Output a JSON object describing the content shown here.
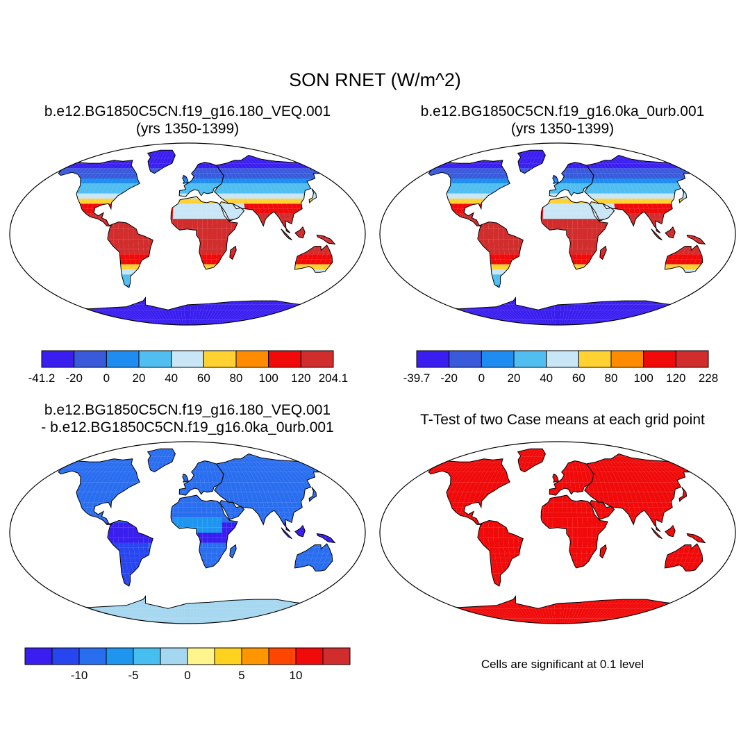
{
  "title": "SON RNET (W/m^2)",
  "panels": [
    {
      "title_line1": "b.e12.BG1850C5CN.f19_g16.180_VEQ.001",
      "title_line2": "(yrs 1350-1399)",
      "colorbar": {
        "colors": [
          "#3a1ef0",
          "#3a5adc",
          "#1e8cf0",
          "#50bef0",
          "#c8e6f5",
          "#ffd232",
          "#ff8c00",
          "#f00a0a",
          "#d22d2d"
        ],
        "labels": [
          "-41.2",
          "-20",
          "0",
          "20",
          "40",
          "60",
          "80",
          "100",
          "120",
          "204.1"
        ]
      }
    },
    {
      "title_line1": "b.e12.BG1850C5CN.f19_g16.0ka_0urb.001",
      "title_line2": "(yrs 1350-1399)",
      "colorbar": {
        "colors": [
          "#3a1ef0",
          "#3a5adc",
          "#1e8cf0",
          "#50bef0",
          "#c8e6f5",
          "#ffd232",
          "#ff8c00",
          "#f00a0a",
          "#d22d2d"
        ],
        "labels": [
          "-39.7",
          "-20",
          "0",
          "20",
          "40",
          "60",
          "80",
          "100",
          "120",
          "228"
        ]
      }
    },
    {
      "title_line1": "b.e12.BG1850C5CN.f19_g16.180_VEQ.001",
      "title_line2": "- b.e12.BG1850C5CN.f19_g16.0ka_0urb.001",
      "colorbar": {
        "colors": [
          "#3a1ef0",
          "#2846f0",
          "#2a6ef0",
          "#1e96f0",
          "#46bef0",
          "#a5d7f0",
          "#fff58c",
          "#ffd21e",
          "#ff9600",
          "#ff4600",
          "#f00a0a",
          "#d22d2d"
        ],
        "labels": [
          "-10",
          "-5",
          "0",
          "5",
          "10"
        ]
      }
    },
    {
      "title_line1": "T-Test of two Case means at each grid point",
      "note": "Cells are significant at 0.1 level"
    }
  ],
  "colors": {
    "ocean": "#ffffff",
    "significant": "#f00a0a",
    "outline": "#000000"
  }
}
